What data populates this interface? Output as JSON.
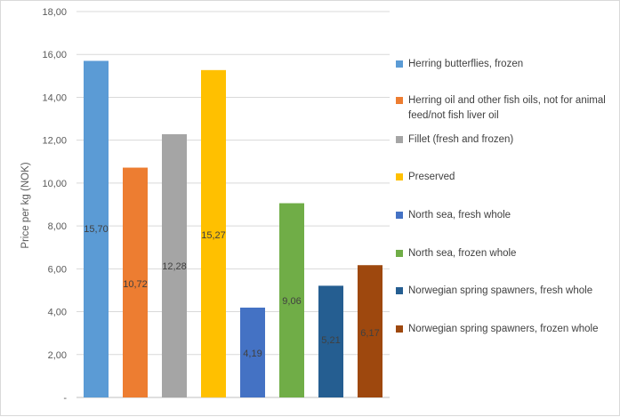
{
  "chart_data": {
    "type": "bar",
    "title": "",
    "xlabel": "",
    "ylabel": "Price per kg (NOK)",
    "ylim": [
      0,
      18
    ],
    "y_ticks": [
      "-",
      "2,00",
      "4,00",
      "6,00",
      "8,00",
      "10,00",
      "12,00",
      "14,00",
      "16,00",
      "18,00"
    ],
    "grid": true,
    "legend_position": "right",
    "series": [
      {
        "name": "Herring butterflies, frozen",
        "value": 15.7,
        "label": "15,70",
        "color": "#5b9bd5"
      },
      {
        "name": "Herring oil and other fish oils, not for animal feed/not fish liver oil",
        "value": 10.72,
        "label": "10,72",
        "color": "#ed7d31"
      },
      {
        "name": "Fillet (fresh and frozen)",
        "value": 12.28,
        "label": "12,28",
        "color": "#a5a5a5"
      },
      {
        "name": "Preserved",
        "value": 15.27,
        "label": "15,27",
        "color": "#ffc000"
      },
      {
        "name": "North sea, fresh whole",
        "value": 4.19,
        "label": "4,19",
        "color": "#4472c4"
      },
      {
        "name": "North sea, frozen whole",
        "value": 9.06,
        "label": "9,06",
        "color": "#70ad47"
      },
      {
        "name": "Norwegian spring spawners, fresh whole",
        "value": 5.21,
        "label": "5,21",
        "color": "#255e91"
      },
      {
        "name": "Norwegian spring spawners, frozen whole",
        "value": 6.17,
        "label": "6,17",
        "color": "#9e480e"
      }
    ]
  }
}
